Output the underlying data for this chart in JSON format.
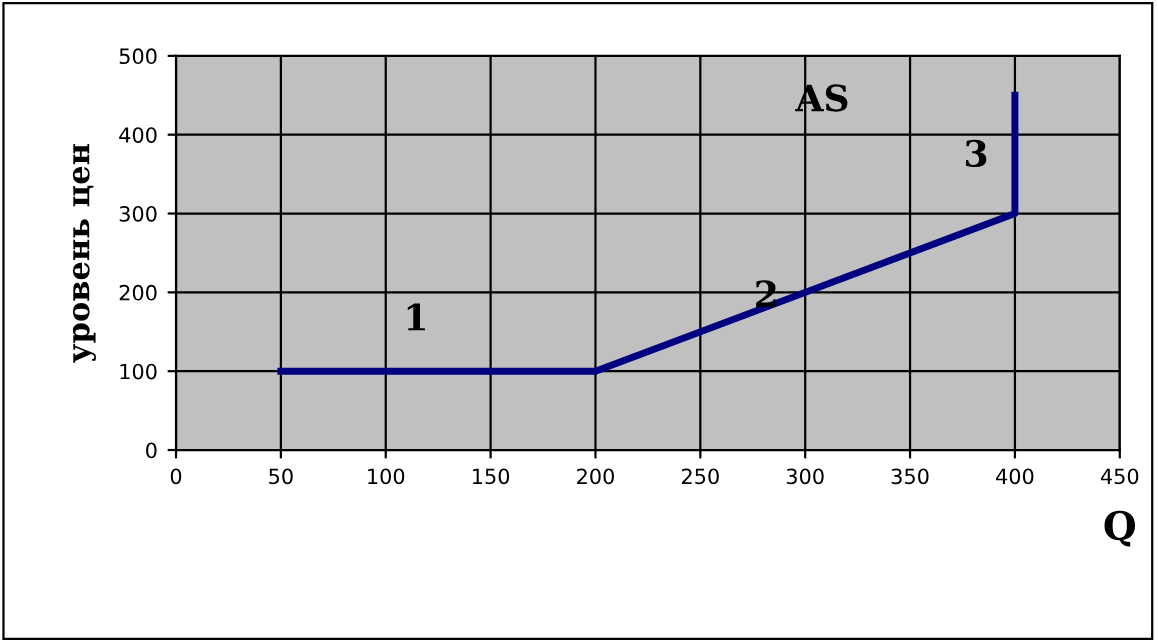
{
  "chart_data": {
    "type": "line",
    "xlabel": "Q",
    "ylabel": "уровень цен",
    "x": [
      50,
      200,
      400,
      400
    ],
    "series": [
      {
        "color": "#000080",
        "values": [
          100,
          100,
          300,
          450
        ]
      }
    ],
    "xlim": [
      0,
      450
    ],
    "xticks": [
      0,
      50,
      100,
      150,
      200,
      250,
      300,
      350,
      400,
      450
    ],
    "ylim": [
      0,
      500
    ],
    "yticks": [
      0,
      100,
      200,
      300,
      400,
      500
    ],
    "grid": true,
    "marker": "none",
    "line_style": "solid",
    "annotations": [
      "AS",
      {
        "text": "1",
        "x": 125,
        "y": 100
      },
      {
        "text": "2",
        "x": 300,
        "y": 200
      },
      {
        "text": "3",
        "x": 400,
        "y": 350
      }
    ]
  }
}
